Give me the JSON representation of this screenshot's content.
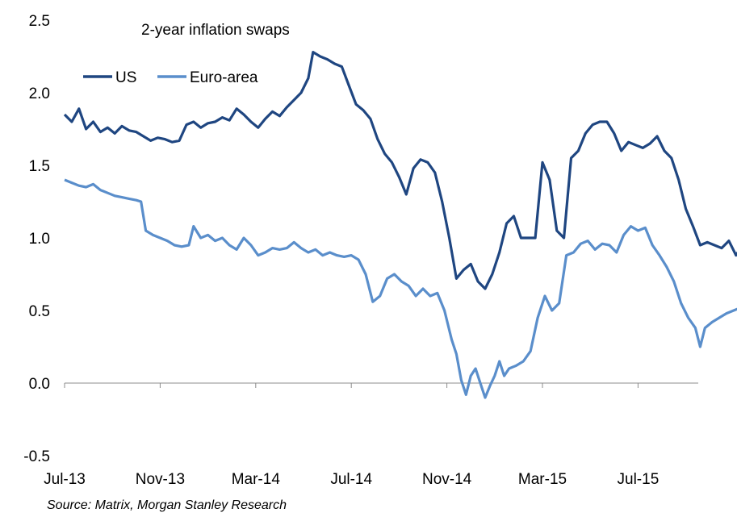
{
  "chart_data": {
    "type": "line",
    "title": "2-year inflation swaps",
    "xlabel": "",
    "ylabel": "",
    "ylim": [
      -0.5,
      2.5
    ],
    "yticks": [
      "2.5",
      "2.0",
      "1.5",
      "1.0",
      "0.5",
      "0.0",
      "-0.5"
    ],
    "xticks": [
      {
        "label": "Jul-13",
        "month": 0
      },
      {
        "label": "Nov-13",
        "month": 4
      },
      {
        "label": "Mar-14",
        "month": 8
      },
      {
        "label": "Jul-14",
        "month": 12
      },
      {
        "label": "Nov-14",
        "month": 16
      },
      {
        "label": "Mar-15",
        "month": 20
      },
      {
        "label": "Jul-15",
        "month": 24
      }
    ],
    "x_range_months": [
      0,
      26.7
    ],
    "legend_position": "top-left",
    "grid": false,
    "series": [
      {
        "name": "US",
        "color": "#1f4681",
        "points": [
          [
            0.0,
            1.85
          ],
          [
            0.3,
            1.8
          ],
          [
            0.6,
            1.89
          ],
          [
            0.9,
            1.75
          ],
          [
            1.2,
            1.8
          ],
          [
            1.5,
            1.73
          ],
          [
            1.8,
            1.76
          ],
          [
            2.1,
            1.72
          ],
          [
            2.4,
            1.77
          ],
          [
            2.7,
            1.74
          ],
          [
            3.0,
            1.73
          ],
          [
            3.3,
            1.7
          ],
          [
            3.6,
            1.67
          ],
          [
            3.9,
            1.69
          ],
          [
            4.2,
            1.68
          ],
          [
            4.5,
            1.66
          ],
          [
            4.8,
            1.67
          ],
          [
            5.1,
            1.78
          ],
          [
            5.4,
            1.8
          ],
          [
            5.7,
            1.76
          ],
          [
            6.0,
            1.79
          ],
          [
            6.3,
            1.8
          ],
          [
            6.6,
            1.83
          ],
          [
            6.9,
            1.81
          ],
          [
            7.2,
            1.89
          ],
          [
            7.5,
            1.85
          ],
          [
            7.8,
            1.8
          ],
          [
            8.1,
            1.76
          ],
          [
            8.4,
            1.82
          ],
          [
            8.7,
            1.87
          ],
          [
            9.0,
            1.84
          ],
          [
            9.3,
            1.9
          ],
          [
            9.6,
            1.95
          ],
          [
            9.9,
            2.0
          ],
          [
            10.2,
            2.1
          ],
          [
            10.4,
            2.28
          ],
          [
            10.7,
            2.25
          ],
          [
            11.0,
            2.23
          ],
          [
            11.3,
            2.2
          ],
          [
            11.6,
            2.18
          ],
          [
            11.9,
            2.05
          ],
          [
            12.2,
            1.92
          ],
          [
            12.5,
            1.88
          ],
          [
            12.8,
            1.82
          ],
          [
            13.1,
            1.68
          ],
          [
            13.4,
            1.58
          ],
          [
            13.7,
            1.52
          ],
          [
            14.0,
            1.42
          ],
          [
            14.3,
            1.3
          ],
          [
            14.6,
            1.48
          ],
          [
            14.9,
            1.54
          ],
          [
            15.2,
            1.52
          ],
          [
            15.5,
            1.45
          ],
          [
            15.8,
            1.25
          ],
          [
            16.1,
            1.0
          ],
          [
            16.4,
            0.72
          ],
          [
            16.7,
            0.78
          ],
          [
            17.0,
            0.82
          ],
          [
            17.3,
            0.7
          ],
          [
            17.6,
            0.65
          ],
          [
            17.9,
            0.75
          ],
          [
            18.2,
            0.9
          ],
          [
            18.5,
            1.1
          ],
          [
            18.8,
            1.15
          ],
          [
            19.1,
            1.0
          ],
          [
            19.4,
            1.0
          ],
          [
            19.7,
            1.0
          ],
          [
            20.0,
            1.52
          ],
          [
            20.3,
            1.4
          ],
          [
            20.6,
            1.05
          ],
          [
            20.9,
            1.0
          ],
          [
            21.2,
            1.55
          ],
          [
            21.5,
            1.6
          ],
          [
            21.8,
            1.72
          ],
          [
            22.1,
            1.78
          ],
          [
            22.4,
            1.8
          ],
          [
            22.7,
            1.8
          ],
          [
            23.0,
            1.72
          ],
          [
            23.3,
            1.6
          ],
          [
            23.6,
            1.66
          ],
          [
            23.9,
            1.64
          ],
          [
            24.2,
            1.62
          ],
          [
            24.5,
            1.65
          ],
          [
            24.8,
            1.7
          ],
          [
            25.1,
            1.6
          ],
          [
            25.4,
            1.55
          ],
          [
            25.7,
            1.4
          ],
          [
            26.0,
            1.2
          ],
          [
            26.3,
            1.08
          ],
          [
            26.6,
            0.95
          ],
          [
            26.9,
            0.97
          ],
          [
            27.2,
            0.95
          ],
          [
            27.5,
            0.93
          ],
          [
            27.8,
            0.98
          ],
          [
            28.1,
            0.88
          ],
          [
            28.4,
            0.96
          ],
          [
            28.7,
            1.02
          ],
          [
            28.9,
            0.94
          ]
        ]
      },
      {
        "name": "Euro-area",
        "color": "#5a8ecb",
        "points": [
          [
            0.0,
            1.4
          ],
          [
            0.3,
            1.38
          ],
          [
            0.6,
            1.36
          ],
          [
            0.9,
            1.35
          ],
          [
            1.2,
            1.37
          ],
          [
            1.5,
            1.33
          ],
          [
            1.8,
            1.31
          ],
          [
            2.1,
            1.29
          ],
          [
            2.4,
            1.28
          ],
          [
            2.7,
            1.27
          ],
          [
            3.0,
            1.26
          ],
          [
            3.2,
            1.25
          ],
          [
            3.4,
            1.05
          ],
          [
            3.7,
            1.02
          ],
          [
            4.0,
            1.0
          ],
          [
            4.3,
            0.98
          ],
          [
            4.6,
            0.95
          ],
          [
            4.9,
            0.94
          ],
          [
            5.2,
            0.95
          ],
          [
            5.4,
            1.08
          ],
          [
            5.7,
            1.0
          ],
          [
            6.0,
            1.02
          ],
          [
            6.3,
            0.98
          ],
          [
            6.6,
            1.0
          ],
          [
            6.9,
            0.95
          ],
          [
            7.2,
            0.92
          ],
          [
            7.5,
            1.0
          ],
          [
            7.8,
            0.95
          ],
          [
            8.1,
            0.88
          ],
          [
            8.4,
            0.9
          ],
          [
            8.7,
            0.93
          ],
          [
            9.0,
            0.92
          ],
          [
            9.3,
            0.93
          ],
          [
            9.6,
            0.97
          ],
          [
            9.9,
            0.93
          ],
          [
            10.2,
            0.9
          ],
          [
            10.5,
            0.92
          ],
          [
            10.8,
            0.88
          ],
          [
            11.1,
            0.9
          ],
          [
            11.4,
            0.88
          ],
          [
            11.7,
            0.87
          ],
          [
            12.0,
            0.88
          ],
          [
            12.3,
            0.85
          ],
          [
            12.6,
            0.75
          ],
          [
            12.9,
            0.56
          ],
          [
            13.2,
            0.6
          ],
          [
            13.5,
            0.72
          ],
          [
            13.8,
            0.75
          ],
          [
            14.1,
            0.7
          ],
          [
            14.4,
            0.67
          ],
          [
            14.7,
            0.6
          ],
          [
            15.0,
            0.65
          ],
          [
            15.3,
            0.6
          ],
          [
            15.6,
            0.62
          ],
          [
            15.9,
            0.5
          ],
          [
            16.2,
            0.3
          ],
          [
            16.4,
            0.2
          ],
          [
            16.6,
            0.02
          ],
          [
            16.8,
            -0.08
          ],
          [
            17.0,
            0.05
          ],
          [
            17.2,
            0.1
          ],
          [
            17.4,
            0.0
          ],
          [
            17.6,
            -0.1
          ],
          [
            17.8,
            -0.02
          ],
          [
            18.0,
            0.05
          ],
          [
            18.2,
            0.15
          ],
          [
            18.4,
            0.05
          ],
          [
            18.6,
            0.1
          ],
          [
            18.9,
            0.12
          ],
          [
            19.2,
            0.15
          ],
          [
            19.5,
            0.22
          ],
          [
            19.8,
            0.45
          ],
          [
            20.1,
            0.6
          ],
          [
            20.4,
            0.5
          ],
          [
            20.7,
            0.55
          ],
          [
            21.0,
            0.88
          ],
          [
            21.3,
            0.9
          ],
          [
            21.6,
            0.96
          ],
          [
            21.9,
            0.98
          ],
          [
            22.2,
            0.92
          ],
          [
            22.5,
            0.96
          ],
          [
            22.8,
            0.95
          ],
          [
            23.1,
            0.9
          ],
          [
            23.4,
            1.02
          ],
          [
            23.7,
            1.08
          ],
          [
            24.0,
            1.05
          ],
          [
            24.3,
            1.07
          ],
          [
            24.6,
            0.95
          ],
          [
            24.9,
            0.88
          ],
          [
            25.2,
            0.8
          ],
          [
            25.5,
            0.7
          ],
          [
            25.8,
            0.55
          ],
          [
            26.1,
            0.45
          ],
          [
            26.4,
            0.38
          ],
          [
            26.6,
            0.25
          ],
          [
            26.8,
            0.38
          ],
          [
            27.1,
            0.42
          ],
          [
            27.4,
            0.45
          ],
          [
            27.7,
            0.48
          ],
          [
            28.0,
            0.5
          ],
          [
            28.3,
            0.52
          ],
          [
            28.6,
            0.58
          ],
          [
            28.9,
            0.53
          ]
        ]
      }
    ]
  },
  "source_note": "Source: Matrix,  Morgan Stanley Research"
}
